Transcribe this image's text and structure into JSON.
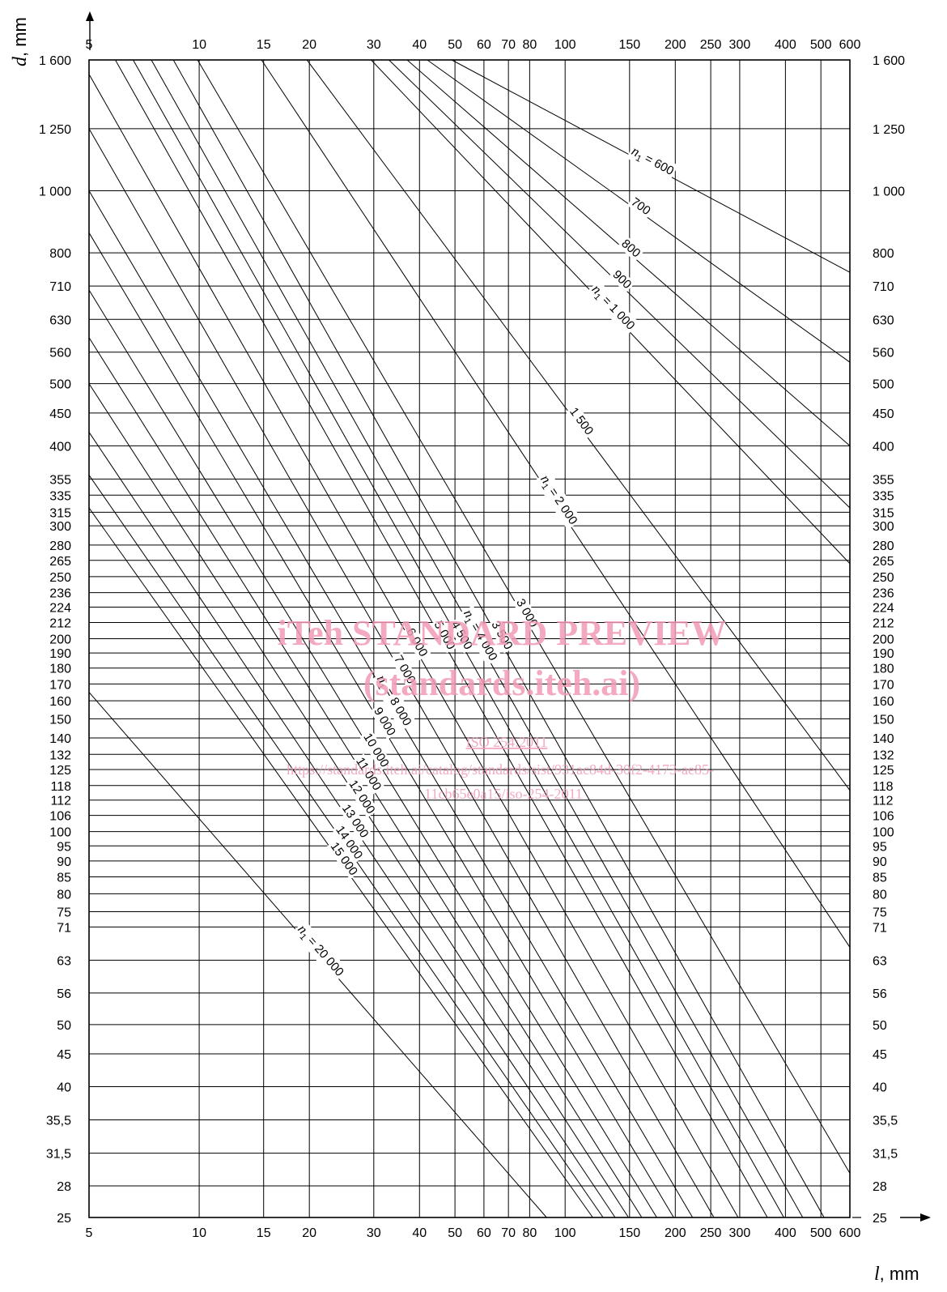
{
  "chart_data": {
    "type": "line",
    "x_axis": {
      "label_var": "l",
      "label_unit": ", mm",
      "scale": "log",
      "range": [
        5,
        600
      ],
      "ticks": [
        5,
        10,
        15,
        20,
        30,
        40,
        50,
        60,
        70,
        80,
        100,
        150,
        200,
        250,
        300,
        400,
        500,
        600
      ],
      "tick_labels": [
        "5",
        "10",
        "15",
        "20",
        "30",
        "40",
        "50",
        "60",
        "70",
        "80",
        "100",
        "150",
        "200",
        "250",
        "300",
        "400",
        "500",
        "600"
      ]
    },
    "y_axis": {
      "label_var": "d",
      "label_unit": ", mm",
      "scale": "log",
      "range": [
        25,
        1600
      ],
      "ticks": [
        25,
        28,
        31.5,
        35.5,
        40,
        45,
        50,
        56,
        63,
        71,
        75,
        80,
        85,
        90,
        95,
        100,
        106,
        112,
        118,
        125,
        132,
        140,
        150,
        160,
        170,
        180,
        190,
        200,
        212,
        224,
        236,
        250,
        265,
        280,
        300,
        315,
        335,
        355,
        400,
        450,
        500,
        560,
        630,
        710,
        800,
        1000,
        1250,
        1600
      ],
      "tick_labels": [
        "25",
        "28",
        "31,5",
        "35,5",
        "40",
        "45",
        "50",
        "56",
        "63",
        "71",
        "75",
        "80",
        "85",
        "90",
        "95",
        "100",
        "106",
        "112",
        "118",
        "125",
        "132",
        "140",
        "150",
        "160",
        "170",
        "180",
        "190",
        "200",
        "212",
        "224",
        "236",
        "250",
        "265",
        "280",
        "300",
        "315",
        "335",
        "355",
        "400",
        "450",
        "500",
        "560",
        "630",
        "710",
        "800",
        "1 000",
        "1 250",
        "1 600"
      ]
    },
    "grid": true,
    "series": [
      {
        "n1": 600,
        "label": "n1 = 600",
        "points": [
          [
            49,
            1600
          ],
          [
            600,
            746
          ]
        ]
      },
      {
        "n1": 700,
        "label": "700",
        "points": [
          [
            42,
            1600
          ],
          [
            600,
            540
          ]
        ]
      },
      {
        "n1": 800,
        "label": "800",
        "points": [
          [
            37,
            1600
          ],
          [
            600,
            400
          ]
        ]
      },
      {
        "n1": 900,
        "label": "900",
        "points": [
          [
            33,
            1600
          ],
          [
            600,
            320
          ]
        ]
      },
      {
        "n1": 1000,
        "label": "n1 = 1 000",
        "points": [
          [
            29.5,
            1600
          ],
          [
            600,
            262
          ]
        ]
      },
      {
        "n1": 1500,
        "label": "1 500",
        "points": [
          [
            19.7,
            1600
          ],
          [
            600,
            116
          ]
        ]
      },
      {
        "n1": 2000,
        "label": "n1 = 2 000",
        "points": [
          [
            14.8,
            1600
          ],
          [
            600,
            66
          ]
        ]
      },
      {
        "n1": 3000,
        "label": "3 000",
        "points": [
          [
            9.9,
            1600
          ],
          [
            600,
            29.3
          ]
        ]
      },
      {
        "n1": 3500,
        "label": "3 500",
        "points": [
          [
            8.5,
            1600
          ],
          [
            510,
            25
          ]
        ]
      },
      {
        "n1": 4000,
        "label": "n1 = 4 000",
        "points": [
          [
            7.4,
            1600
          ],
          [
            446,
            25
          ]
        ]
      },
      {
        "n1": 4500,
        "label": "4 500",
        "points": [
          [
            6.6,
            1600
          ],
          [
            396,
            25
          ]
        ]
      },
      {
        "n1": 5000,
        "label": "5 000",
        "points": [
          [
            5.9,
            1600
          ],
          [
            357,
            25
          ]
        ]
      },
      {
        "n1": 6000,
        "label": "6 000",
        "points": [
          [
            5,
            1520
          ],
          [
            297,
            25
          ]
        ]
      },
      {
        "n1": 7000,
        "label": "7 000",
        "points": [
          [
            5,
            1250
          ],
          [
            255,
            25
          ]
        ]
      },
      {
        "n1": 8000,
        "label": "n1 = 8 000",
        "points": [
          [
            5,
            1000
          ],
          [
            223,
            25
          ]
        ]
      },
      {
        "n1": 9000,
        "label": "9 000",
        "points": [
          [
            5,
            860
          ],
          [
            198,
            25
          ]
        ]
      },
      {
        "n1": 10000,
        "label": "10 000",
        "points": [
          [
            5,
            700
          ],
          [
            178,
            25
          ]
        ]
      },
      {
        "n1": 11000,
        "label": "11 000",
        "points": [
          [
            5,
            590
          ],
          [
            162,
            25
          ]
        ]
      },
      {
        "n1": 12000,
        "label": "12 000",
        "points": [
          [
            5,
            500
          ],
          [
            149,
            25
          ]
        ]
      },
      {
        "n1": 13000,
        "label": "13 000",
        "points": [
          [
            5,
            420
          ],
          [
            137,
            25
          ]
        ]
      },
      {
        "n1": 14000,
        "label": "14 000",
        "points": [
          [
            5,
            360
          ],
          [
            127,
            25
          ]
        ]
      },
      {
        "n1": 15000,
        "label": "15 000",
        "points": [
          [
            5,
            320
          ],
          [
            119,
            25
          ]
        ]
      },
      {
        "n1": 20000,
        "label": "n1 = 20 000",
        "points": [
          [
            5,
            165
          ],
          [
            89,
            25
          ]
        ]
      }
    ]
  },
  "watermark": {
    "line1": "iTeh STANDARD PREVIEW",
    "line2": "(standards.iteh.ai)",
    "line3": "ISO 254:2011",
    "line4": "https://standards.iteh.ai/catalog/standards/sist/931ac84d-30f2-4173-ae85-",
    "line5": "11cb65e0a15/iso-254-2011",
    "color": "#f19bb4"
  }
}
